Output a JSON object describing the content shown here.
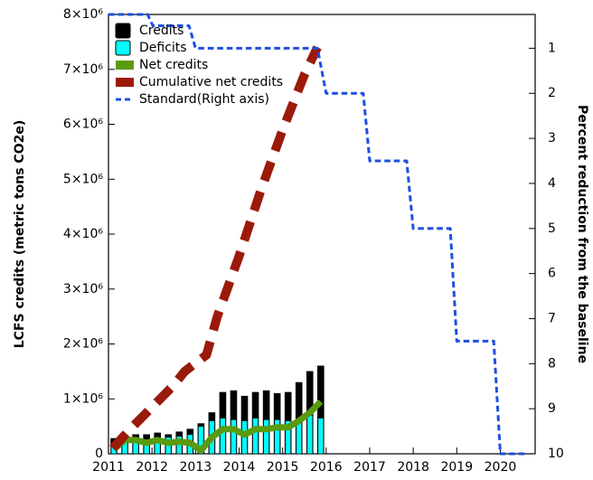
{
  "chart_data": {
    "type": "combo",
    "y_label": "LCFS credits (metric tons CO2e)",
    "y2_label": "Percent reduction from the baseline",
    "xlim": [
      2011,
      2020.8
    ],
    "xticks": [
      2011,
      2012,
      2013,
      2014,
      2015,
      2016,
      2017,
      2018,
      2019,
      2020
    ],
    "ylim": [
      0,
      8000000
    ],
    "yticks": [
      0,
      {
        "value": 1000000,
        "label": "1×10⁶"
      },
      {
        "value": 2000000,
        "label": "2×10⁶"
      },
      {
        "value": 3000000,
        "label": "3×10⁶"
      },
      {
        "value": 4000000,
        "label": "4×10⁶"
      },
      {
        "value": 5000000,
        "label": "5×10⁶"
      },
      {
        "value": 6000000,
        "label": "6×10⁶"
      },
      {
        "value": 7000000,
        "label": "7×10⁶"
      },
      {
        "value": 8000000,
        "label": "8×10⁶"
      }
    ],
    "y2lim": [
      0.25,
      10
    ],
    "y2_inverted": true,
    "y2ticks": [
      1,
      2,
      3,
      4,
      5,
      6,
      7,
      8,
      9,
      10
    ],
    "legend": "top-left",
    "series": [
      {
        "name": "Credits",
        "kind": "bar",
        "color": "#000000",
        "x": [
          2011.125,
          2011.375,
          2011.625,
          2011.875,
          2012.125,
          2012.375,
          2012.625,
          2012.875,
          2013.125,
          2013.375,
          2013.625,
          2013.875,
          2014.125,
          2014.375,
          2014.625,
          2014.875,
          2015.125,
          2015.375,
          2015.625,
          2015.875
        ],
        "values": [
          280000,
          300000,
          350000,
          350000,
          380000,
          350000,
          400000,
          450000,
          550000,
          750000,
          1120000,
          1150000,
          1050000,
          1120000,
          1150000,
          1100000,
          1120000,
          1300000,
          1500000,
          1600000
        ]
      },
      {
        "name": "Deficits",
        "kind": "bar",
        "color": "#00ffff",
        "x": [
          2011.125,
          2011.375,
          2011.625,
          2011.875,
          2012.125,
          2012.375,
          2012.625,
          2012.875,
          2013.125,
          2013.375,
          2013.625,
          2013.875,
          2014.125,
          2014.375,
          2014.625,
          2014.875,
          2015.125,
          2015.375,
          2015.625,
          2015.875
        ],
        "values": [
          200000,
          250000,
          250000,
          250000,
          300000,
          300000,
          320000,
          350000,
          500000,
          600000,
          650000,
          620000,
          600000,
          650000,
          620000,
          620000,
          600000,
          650000,
          700000,
          650000
        ]
      },
      {
        "name": "Net credits",
        "kind": "line",
        "color": "#5a9a10",
        "width": 7,
        "x": [
          2011.125,
          2011.375,
          2011.625,
          2011.875,
          2012.125,
          2012.375,
          2012.625,
          2012.875,
          2013.125,
          2013.375,
          2013.625,
          2013.875,
          2014.125,
          2014.375,
          2014.625,
          2014.875,
          2015.125,
          2015.375,
          2015.625,
          2015.875
        ],
        "values": [
          80000,
          250000,
          250000,
          200000,
          250000,
          200000,
          220000,
          200000,
          60000,
          300000,
          450000,
          450000,
          350000,
          450000,
          450000,
          480000,
          480000,
          600000,
          750000,
          950000
        ]
      },
      {
        "name": "Cumulative net credits",
        "kind": "line",
        "color": "#9b1a0a",
        "width": 10,
        "dashed": true,
        "x": [
          2011.1,
          2011.5,
          2012,
          2012.5,
          2012.75,
          2013.25,
          2013.5,
          2014,
          2014.5,
          2015,
          2015.5,
          2015.8
        ],
        "values": [
          100000,
          450000,
          850000,
          1250000,
          1500000,
          1800000,
          2500000,
          3600000,
          4800000,
          5900000,
          6900000,
          7400000
        ]
      },
      {
        "name": "Standard(Right axis)",
        "kind": "line",
        "color": "#1f4fe0",
        "width": 3,
        "dashed": true,
        "axis": "y2",
        "x": [
          2011,
          2011.9,
          2012.02,
          2012.85,
          2013.0,
          2015.8,
          2016.0,
          2016.85,
          2017.0,
          2017.85,
          2018.0,
          2018.85,
          2019.0,
          2019.85,
          2020.0,
          2020.6
        ],
        "values": [
          0.25,
          0.25,
          0.5,
          0.5,
          1,
          1,
          2,
          2,
          3.5,
          3.5,
          5,
          5,
          7.5,
          7.5,
          10,
          10
        ]
      }
    ]
  }
}
